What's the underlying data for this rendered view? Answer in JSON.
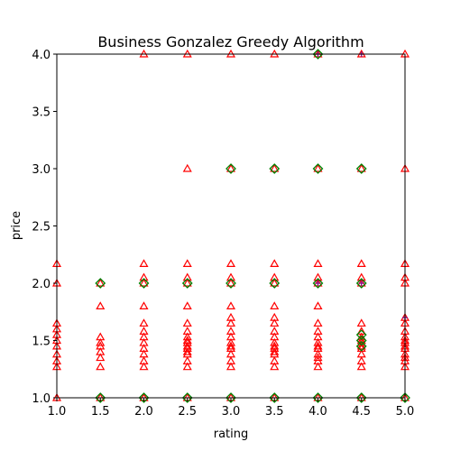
{
  "chart_data": {
    "type": "scatter",
    "title": "Business Gonzalez Greedy Algorithm",
    "xlabel": "rating",
    "ylabel": "price",
    "xlim": [
      1.0,
      5.0
    ],
    "ylim": [
      1.0,
      4.0
    ],
    "xticks": [
      "1.0",
      "1.5",
      "2.0",
      "2.5",
      "3.0",
      "3.5",
      "4.0",
      "4.5",
      "5.0"
    ],
    "yticks": [
      "1.0",
      "1.5",
      "2.0",
      "2.5",
      "3.0",
      "3.5",
      "4.0"
    ],
    "grid": false,
    "colors": {
      "points": "#ff0000",
      "centers": "#008000",
      "highlight": "#800080"
    },
    "series": [
      {
        "marker": "triangle",
        "color": "#ff0000",
        "x": [
          1.0,
          1.0,
          1.0,
          1.0,
          1.0,
          1.0,
          1.0,
          1.0,
          1.0,
          1.0,
          1.0,
          1.5,
          1.5,
          1.5,
          1.5,
          1.5,
          1.5,
          1.5,
          1.5,
          1.5,
          2.0,
          2.0,
          2.0,
          2.0,
          2.0,
          2.0,
          2.0,
          2.0,
          2.0,
          2.0,
          2.0,
          2.0,
          2.0,
          2.0,
          2.0,
          2.5,
          2.5,
          2.5,
          2.5,
          2.5,
          2.5,
          2.5,
          2.5,
          2.5,
          2.5,
          2.5,
          2.5,
          2.5,
          2.5,
          2.5,
          2.5,
          2.5,
          2.5,
          3.0,
          3.0,
          3.0,
          3.0,
          3.0,
          3.0,
          3.0,
          3.0,
          3.0,
          3.0,
          3.0,
          3.0,
          3.0,
          3.0,
          3.0,
          3.0,
          3.0,
          3.5,
          3.5,
          3.5,
          3.5,
          3.5,
          3.5,
          3.5,
          3.5,
          3.5,
          3.5,
          3.5,
          3.5,
          3.5,
          3.5,
          3.5,
          3.5,
          3.5,
          3.5,
          4.0,
          4.0,
          4.0,
          4.0,
          4.0,
          4.0,
          4.0,
          4.0,
          4.0,
          4.0,
          4.0,
          4.0,
          4.0,
          4.0,
          4.0,
          4.0,
          4.0,
          4.5,
          4.5,
          4.5,
          4.5,
          4.5,
          4.5,
          4.5,
          4.5,
          4.5,
          4.5,
          4.5,
          4.5,
          4.5,
          4.5,
          4.5,
          4.5,
          5.0,
          5.0,
          5.0,
          5.0,
          5.0,
          5.0,
          5.0,
          5.0,
          5.0,
          5.0,
          5.0,
          5.0,
          5.0,
          5.0,
          5.0,
          5.0,
          5.0,
          5.0
        ],
        "y": [
          1.0,
          1.27,
          1.32,
          1.38,
          1.45,
          1.5,
          1.55,
          1.6,
          1.65,
          2.0,
          2.17,
          1.0,
          1.27,
          1.35,
          1.4,
          1.45,
          1.48,
          1.53,
          1.8,
          2.0,
          1.0,
          1.27,
          1.32,
          1.38,
          1.43,
          1.48,
          1.53,
          1.58,
          1.65,
          1.8,
          2.0,
          2.05,
          2.17,
          4.0,
          1.0,
          1.0,
          1.27,
          1.32,
          1.38,
          1.43,
          1.48,
          1.53,
          1.58,
          1.65,
          1.8,
          2.0,
          2.05,
          2.17,
          3.0,
          4.0,
          1.4,
          1.45,
          1.5,
          1.0,
          1.27,
          1.32,
          1.38,
          1.43,
          1.48,
          1.53,
          1.58,
          1.65,
          1.7,
          1.8,
          2.0,
          2.05,
          2.17,
          3.0,
          4.0,
          1.45,
          1.0,
          1.27,
          1.32,
          1.38,
          1.43,
          1.48,
          1.53,
          1.58,
          1.65,
          1.7,
          1.8,
          2.0,
          2.05,
          2.17,
          3.0,
          4.0,
          1.4,
          1.45,
          1.0,
          1.27,
          1.32,
          1.38,
          1.43,
          1.48,
          1.53,
          1.58,
          1.65,
          1.8,
          2.0,
          2.05,
          2.17,
          3.0,
          4.0,
          1.35,
          1.45,
          1.0,
          1.27,
          1.32,
          1.38,
          1.43,
          1.48,
          1.53,
          1.58,
          1.65,
          2.0,
          2.05,
          2.17,
          3.0,
          4.0,
          1.45,
          1.5,
          1.0,
          1.27,
          1.32,
          1.38,
          1.43,
          1.48,
          1.53,
          1.58,
          1.65,
          1.7,
          2.0,
          2.05,
          2.17,
          3.0,
          4.0,
          1.35,
          1.45,
          1.5
        ]
      },
      {
        "marker": "diamond",
        "color": "#008000",
        "x": [
          1.5,
          2.0,
          2.5,
          3.0,
          3.5,
          4.0,
          4.5,
          5.0,
          1.5,
          2.0,
          2.5,
          3.0,
          3.5,
          4.0,
          4.5,
          3.0,
          3.5,
          4.0,
          4.5,
          4.0,
          4.5,
          4.5,
          4.5
        ],
        "y": [
          1.0,
          1.0,
          1.0,
          1.0,
          1.0,
          1.0,
          1.0,
          1.0,
          2.0,
          2.0,
          2.0,
          2.0,
          2.0,
          2.0,
          2.0,
          3.0,
          3.0,
          3.0,
          3.0,
          4.0,
          1.45,
          1.5,
          1.55
        ]
      },
      {
        "marker": "plus",
        "color": "#800080",
        "x": [
          4.0,
          4.5,
          5.0,
          4.0,
          4.5
        ],
        "y": [
          4.0,
          4.0,
          1.7,
          2.0,
          2.0
        ]
      }
    ]
  }
}
